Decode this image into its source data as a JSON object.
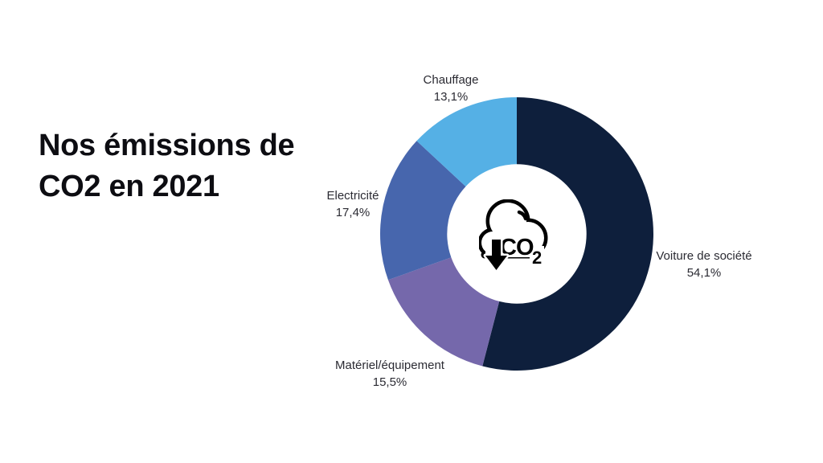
{
  "slide": {
    "background_color": "#ffffff",
    "title": {
      "line1": "Nos émissions de",
      "line2": "CO2 en 2021",
      "color": "#0d0d12"
    }
  },
  "center_icon": {
    "glyph": "co2-cloud-down-arrow",
    "text": "CO",
    "subscript": "2",
    "color": "#000000"
  },
  "chart_data": {
    "type": "pie",
    "variant": "donut",
    "title": "Nos émissions de CO2 en 2021",
    "direction": "clockwise",
    "start_angle_deg": 0,
    "inner_radius_ratio": 0.51,
    "legend_position": "outside-labels",
    "categories": [
      "Voiture de société",
      "Matériel/équipement",
      "Electricité",
      "Chauffage"
    ],
    "values": [
      54.1,
      15.5,
      17.4,
      13.1
    ],
    "value_labels": [
      "54,1%",
      "15,5%",
      "17,4%",
      "13,1%"
    ],
    "colors": [
      "#0e1f3c",
      "#7568ab",
      "#4766ad",
      "#55b0e5"
    ],
    "label_text_color": "#2b2b33"
  }
}
